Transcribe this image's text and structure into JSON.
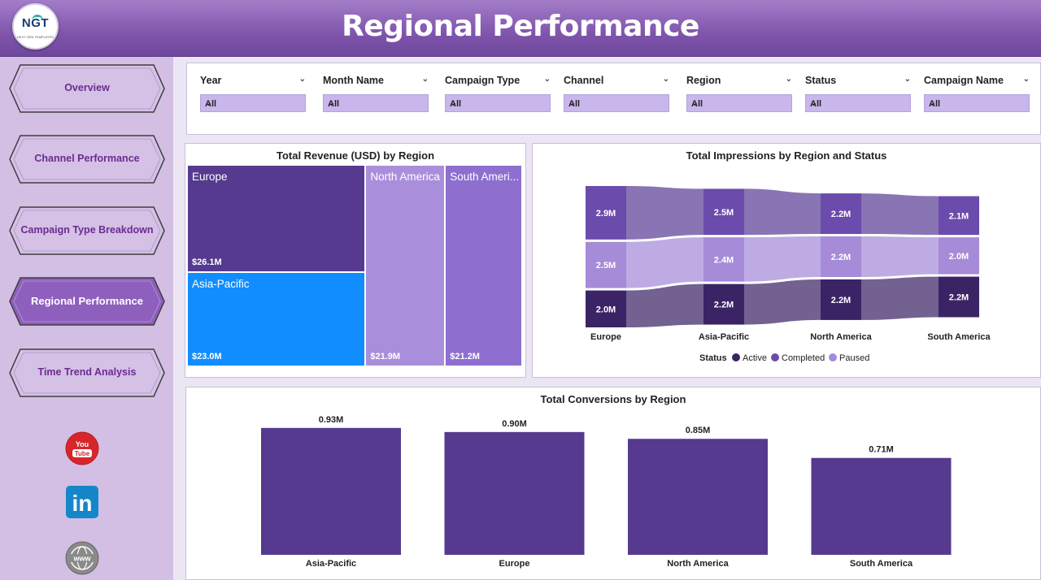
{
  "header": {
    "title": "Regional Performance",
    "logo_text": "NGT",
    "logo_subtitle": "NEXT GEN TEMPLATES"
  },
  "sidebar": {
    "items": [
      {
        "label": "Overview",
        "active": false
      },
      {
        "label": "Channel Performance",
        "active": false
      },
      {
        "label": "Campaign Type Breakdown",
        "active": false
      },
      {
        "label": "Regional Performance",
        "active": true
      },
      {
        "label": "Time Trend Analysis",
        "active": false
      }
    ],
    "social": {
      "youtube": "You Tube",
      "linkedin": "in",
      "web": "www"
    }
  },
  "filters": [
    {
      "label": "Year",
      "value": "All"
    },
    {
      "label": "Month Name",
      "value": "All"
    },
    {
      "label": "Campaign Type",
      "value": "All"
    },
    {
      "label": "Channel",
      "value": "All"
    },
    {
      "label": "Region",
      "value": "All"
    },
    {
      "label": "Status",
      "value": "All"
    },
    {
      "label": "Campaign Name",
      "value": "All"
    }
  ],
  "colors": {
    "header": "#7f55ac",
    "sidebar": "#d3bfe3",
    "bar": "#553a8f",
    "europe": "#553a8f",
    "asia": "#118dff",
    "north_america": "#a98fdb",
    "south_america": "#8e6fd0",
    "active": "#3b2466",
    "completed": "#6b4bab",
    "paused": "#a58bd8"
  },
  "chart_data": [
    {
      "type": "treemap",
      "title": "Total Revenue (USD) by Region",
      "categories": [
        "Europe",
        "Asia-Pacific",
        "North America",
        "South America"
      ],
      "labels": [
        "Europe",
        "Asia-Pacific",
        "North America",
        "South Ameri..."
      ],
      "values": [
        26.1,
        23.0,
        21.9,
        21.2
      ],
      "value_labels": [
        "$26.1M",
        "$23.0M",
        "$21.9M",
        "$21.2M"
      ]
    },
    {
      "type": "sankey",
      "title": "Total Impressions by Region and Status",
      "categories": [
        "Europe",
        "Asia-Pacific",
        "North America",
        "South America"
      ],
      "series": [
        {
          "name": "Active",
          "values": [
            2.0,
            2.2,
            2.2,
            2.2
          ],
          "labels": [
            "2.0M",
            "2.2M",
            "2.2M",
            "2.2M"
          ]
        },
        {
          "name": "Completed",
          "values": [
            2.9,
            2.5,
            2.2,
            2.1
          ],
          "labels": [
            "2.9M",
            "2.5M",
            "2.2M",
            "2.1M"
          ]
        },
        {
          "name": "Paused",
          "values": [
            2.5,
            2.4,
            2.2,
            2.0
          ],
          "labels": [
            "2.5M",
            "2.4M",
            "2.2M",
            "2.0M"
          ]
        }
      ],
      "legend_title": "Status",
      "legend": [
        "Active",
        "Completed",
        "Paused"
      ]
    },
    {
      "type": "bar",
      "title": "Total Conversions by Region",
      "categories": [
        "Asia-Pacific",
        "Europe",
        "North America",
        "South America"
      ],
      "values": [
        0.93,
        0.9,
        0.85,
        0.71
      ],
      "value_labels": [
        "0.93M",
        "0.90M",
        "0.85M",
        "0.71M"
      ],
      "ylim": [
        0,
        1.03
      ]
    }
  ]
}
